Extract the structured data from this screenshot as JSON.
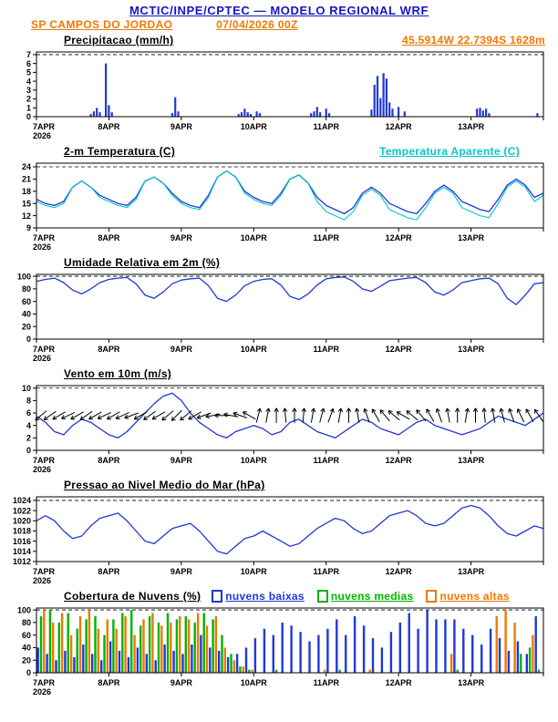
{
  "header": {
    "title": "MCTIC/INPE/CPTEC — MODELO REGIONAL WRF",
    "station": "SP CAMPOS DO JORDAO",
    "run": "07/04/2026 00Z",
    "location": "45.5914W 22.7394S 1628m"
  },
  "colors": {
    "header_blue": "#1616c8",
    "orange": "#f07800",
    "blue": "#2038d8",
    "cyan": "#00c8c8",
    "green": "#00b400",
    "black": "#000000"
  },
  "x_axis": {
    "day_labels": [
      "7APR",
      "8APR",
      "9APR",
      "10APR",
      "11APR",
      "12APR",
      "13APR"
    ],
    "year_label": "2026",
    "total_hours": 168
  },
  "chart_data": [
    {
      "id": "precipitation",
      "type": "bar",
      "title": "Precipitacao (mm/h)",
      "ylabel": "mm/h",
      "ylim": [
        0,
        7.3
      ],
      "yticks": [
        0,
        1,
        2,
        3,
        4,
        5,
        6,
        7
      ],
      "color": "#2038d8",
      "bars": [
        [
          18,
          0.3
        ],
        [
          19,
          0.6
        ],
        [
          20,
          1.0
        ],
        [
          21,
          0.5
        ],
        [
          23,
          6.0
        ],
        [
          24,
          1.3
        ],
        [
          25,
          0.5
        ],
        [
          45,
          0.4
        ],
        [
          46,
          2.2
        ],
        [
          47,
          0.6
        ],
        [
          67,
          0.3
        ],
        [
          68,
          0.5
        ],
        [
          69,
          0.9
        ],
        [
          70,
          0.5
        ],
        [
          71,
          0.3
        ],
        [
          73,
          0.6
        ],
        [
          74,
          0.4
        ],
        [
          91,
          0.4
        ],
        [
          92,
          0.6
        ],
        [
          93,
          1.1
        ],
        [
          94,
          0.5
        ],
        [
          96,
          0.9
        ],
        [
          97,
          0.4
        ],
        [
          111,
          0.8
        ],
        [
          112,
          3.6
        ],
        [
          113,
          4.6
        ],
        [
          114,
          2.1
        ],
        [
          115,
          4.9
        ],
        [
          116,
          4.3
        ],
        [
          117,
          1.6
        ],
        [
          118,
          0.9
        ],
        [
          120,
          1.1
        ],
        [
          122,
          0.6
        ],
        [
          146,
          0.9
        ],
        [
          147,
          1.0
        ],
        [
          148,
          0.7
        ],
        [
          149,
          0.9
        ],
        [
          150,
          0.4
        ],
        [
          166,
          0.4
        ]
      ]
    },
    {
      "id": "temperature",
      "type": "line",
      "title": "2-m Temperatura (C)",
      "ylim": [
        9,
        24.9
      ],
      "yticks": [
        9,
        12,
        15,
        18,
        21,
        24
      ],
      "series": [
        {
          "label": "2-m Temperatura (C)",
          "color": "#2038d8",
          "width": 1.3,
          "values": [
            16,
            15,
            14.5,
            15.5,
            19,
            20.5,
            19,
            17,
            16,
            15,
            14.5,
            16.5,
            20.5,
            21.5,
            20,
            17.5,
            15.5,
            14.5,
            14,
            17,
            21.5,
            23,
            21.5,
            18,
            16.5,
            15.5,
            15,
            17.5,
            21,
            22,
            20,
            16.5,
            14.5,
            13.5,
            12.5,
            14,
            17.5,
            19,
            17.5,
            15,
            14,
            13,
            12.5,
            15,
            18,
            19.5,
            18,
            15.5,
            14.5,
            13.5,
            13,
            16,
            19.5,
            21,
            19.5,
            16.5,
            17.5
          ]
        },
        {
          "label": "Temperatura Aparente (C)",
          "color": "#00c8c8",
          "width": 1.1,
          "values": [
            15.5,
            14.5,
            14,
            15,
            19,
            20.5,
            19,
            16.5,
            15.5,
            14.5,
            14,
            16,
            20.5,
            21.5,
            20,
            17,
            15,
            14,
            13.5,
            16.5,
            21.5,
            23,
            21.5,
            17.5,
            16,
            15,
            14.5,
            17,
            21,
            22,
            20,
            15.5,
            13,
            12,
            11,
            13,
            17,
            18.5,
            17,
            13.5,
            12.5,
            11.5,
            11,
            14,
            17.5,
            19,
            17.5,
            14,
            13,
            12,
            11.5,
            15,
            19,
            20.5,
            19,
            15.5,
            17
          ]
        }
      ]
    },
    {
      "id": "humidity",
      "type": "line",
      "title": "Umidade Relativa em 2m (%)",
      "ylim": [
        0,
        103
      ],
      "yticks": [
        0,
        20,
        40,
        60,
        80,
        100
      ],
      "series": [
        {
          "label": "Umidade Relativa em 2m (%)",
          "color": "#2038d8",
          "width": 1.3,
          "values": [
            92,
            95,
            97,
            90,
            78,
            72,
            80,
            90,
            95,
            97,
            98,
            88,
            70,
            65,
            75,
            88,
            94,
            96,
            97,
            85,
            65,
            60,
            70,
            85,
            92,
            95,
            96,
            86,
            68,
            63,
            72,
            86,
            96,
            98,
            99,
            92,
            80,
            76,
            84,
            93,
            95,
            97,
            98,
            90,
            75,
            70,
            78,
            90,
            93,
            96,
            97,
            88,
            65,
            55,
            70,
            88,
            90
          ]
        }
      ]
    },
    {
      "id": "wind",
      "type": "wind",
      "title": "Vento em 10m (m/s)",
      "ylim": [
        0,
        10.4
      ],
      "yticks": [
        0,
        2,
        4,
        6,
        8,
        10
      ],
      "series": [
        {
          "label": "Vento em 10m (m/s)",
          "color": "#2038d8",
          "width": 1.3,
          "values": [
            5.5,
            4.5,
            3,
            2.5,
            4,
            5,
            4.5,
            3.5,
            2.5,
            2,
            3,
            4.5,
            6,
            7.5,
            8.7,
            9.2,
            8,
            6,
            4.5,
            3.5,
            2.5,
            2,
            3,
            3.5,
            4,
            3.5,
            2.5,
            3,
            4.5,
            5,
            4,
            3,
            2.5,
            2,
            3,
            4,
            5,
            4.5,
            3.5,
            3,
            2.5,
            3.5,
            4.5,
            5,
            4,
            3.5,
            3,
            2.5,
            3,
            3.5,
            4.5,
            5.5,
            5,
            4.5,
            4,
            5,
            6
          ]
        }
      ],
      "barbs": {
        "y": 5.6,
        "color": "#000000",
        "angles": [
          140,
          145,
          150,
          155,
          150,
          145,
          150,
          155,
          150,
          155,
          160,
          150,
          145,
          150,
          140,
          135,
          140,
          150,
          160,
          170,
          180,
          190,
          200,
          210,
          285,
          280,
          270,
          265,
          270,
          275,
          280,
          285,
          290,
          280,
          270,
          260,
          250,
          240,
          230,
          220,
          210,
          220,
          230,
          240,
          250,
          260,
          270,
          280,
          270,
          265,
          260,
          255,
          250,
          245,
          240,
          235
        ]
      }
    },
    {
      "id": "pressure",
      "type": "line",
      "title": "Pressao ao Nivel Medio do Mar (hPa)",
      "ylim": [
        1012,
        1024.7
      ],
      "yticks": [
        1012,
        1014,
        1016,
        1018,
        1020,
        1022,
        1024
      ],
      "series": [
        {
          "label": "Pressao ao Nivel Medio do Mar (hPa)",
          "color": "#2038d8",
          "width": 1.3,
          "values": [
            1020,
            1021,
            1020,
            1018,
            1016.5,
            1017,
            1019,
            1020.5,
            1021,
            1021.5,
            1020,
            1018,
            1016,
            1015.5,
            1017,
            1018.5,
            1019,
            1019.5,
            1018,
            1016,
            1014,
            1013.5,
            1015,
            1016.5,
            1017,
            1018,
            1017,
            1016,
            1015,
            1015.5,
            1017,
            1018.5,
            1019.5,
            1020.5,
            1020,
            1018.5,
            1017.5,
            1018,
            1019.5,
            1021,
            1021.5,
            1022,
            1021,
            1019.5,
            1019,
            1019.5,
            1021,
            1022.5,
            1023,
            1022.5,
            1021,
            1019,
            1017.5,
            1017,
            1018,
            1019,
            1018.5
          ]
        }
      ]
    },
    {
      "id": "clouds",
      "type": "groupbar",
      "title": "Cobertura de Nuvens (%)",
      "ylim": [
        0,
        103
      ],
      "yticks": [
        0,
        20,
        40,
        60,
        80,
        100
      ],
      "series": [
        {
          "label": "nuvens baixas",
          "color": "#2038d8",
          "values": [
            40,
            30,
            20,
            35,
            25,
            45,
            30,
            20,
            50,
            35,
            25,
            40,
            30,
            20,
            45,
            35,
            30,
            45,
            60,
            40,
            35,
            25,
            30,
            40,
            55,
            70,
            60,
            80,
            75,
            65,
            50,
            60,
            70,
            85,
            60,
            90,
            75,
            55,
            40,
            65,
            80,
            95,
            70,
            100,
            85,
            85,
            85,
            70,
            60,
            45,
            70,
            55,
            35,
            50,
            30,
            90
          ]
        },
        {
          "label": "nuvens medias",
          "color": "#00b400",
          "values": [
            90,
            100,
            80,
            95,
            70,
            85,
            90,
            60,
            85,
            95,
            100,
            75,
            90,
            80,
            95,
            85,
            90,
            80,
            95,
            85,
            60,
            30,
            10,
            5,
            0,
            0,
            5,
            0,
            0,
            0,
            0,
            0,
            0,
            5,
            0,
            0,
            0,
            0,
            0,
            0,
            0,
            0,
            0,
            0,
            0,
            0,
            5,
            0,
            0,
            0,
            0,
            0,
            0,
            30,
            40,
            5
          ]
        },
        {
          "label": "nuvens altas",
          "color": "#f07800",
          "values": [
            100,
            80,
            95,
            60,
            90,
            100,
            70,
            85,
            70,
            90,
            60,
            85,
            95,
            75,
            80,
            90,
            85,
            95,
            75,
            90,
            40,
            20,
            10,
            5,
            0,
            0,
            0,
            0,
            0,
            0,
            0,
            5,
            0,
            0,
            0,
            0,
            5,
            0,
            0,
            0,
            0,
            0,
            0,
            0,
            0,
            30,
            0,
            0,
            0,
            0,
            90,
            100,
            80,
            0,
            60,
            0
          ]
        }
      ]
    }
  ]
}
